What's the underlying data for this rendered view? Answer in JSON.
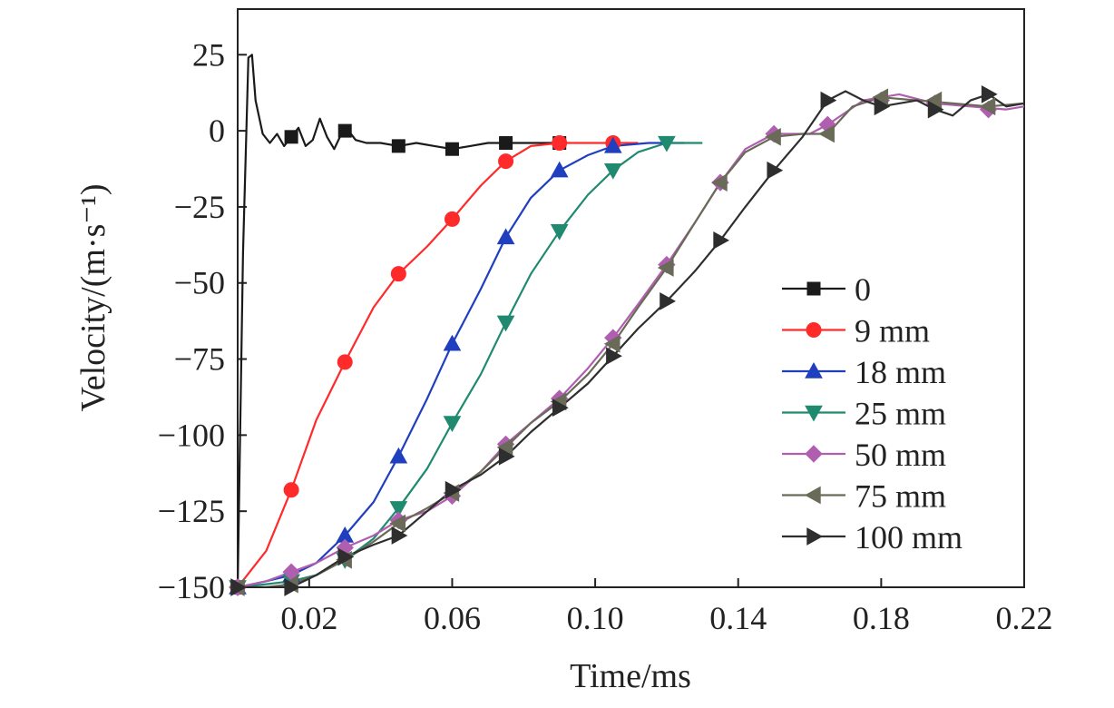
{
  "chart_data": {
    "type": "line",
    "xlabel": "Time/ms",
    "ylabel": "Velocity/(m·s⁻¹)",
    "xlim": [
      0.0,
      0.22
    ],
    "ylim": [
      -150,
      40
    ],
    "x_ticks": [
      0.02,
      0.06,
      0.1,
      0.14,
      0.18,
      0.22
    ],
    "x_tick_labels": [
      "0.02",
      "0.06",
      "0.10",
      "0.14",
      "0.18",
      "0.22"
    ],
    "y_ticks": [
      25,
      0,
      -25,
      -50,
      -75,
      -100,
      -125,
      -150
    ],
    "y_tick_labels": [
      "25",
      "0",
      "−25",
      "−50",
      "−75",
      "−100",
      "−125",
      "−150"
    ],
    "grid": false,
    "legend_position": "right",
    "series": [
      {
        "name": "0",
        "color": "#1a1a1a",
        "marker": "square",
        "x": [
          0.0,
          0.0015,
          0.003,
          0.004,
          0.005,
          0.007,
          0.009,
          0.011,
          0.013,
          0.015,
          0.017,
          0.019,
          0.021,
          0.023,
          0.025,
          0.027,
          0.029,
          0.031,
          0.033,
          0.036,
          0.04,
          0.045,
          0.05,
          0.055,
          0.06,
          0.065,
          0.07,
          0.075,
          0.08,
          0.085,
          0.09
        ],
        "y": [
          -150,
          -40,
          24,
          25,
          10,
          -1,
          -4,
          -1,
          -5,
          -2,
          1,
          -5,
          -3,
          4,
          -2,
          -6,
          -1,
          0,
          -3,
          -4,
          -4,
          -5,
          -4,
          -5,
          -6,
          -5,
          -4,
          -4,
          -4,
          -4,
          -4
        ],
        "marker_x": [
          0.015,
          0.03,
          0.045,
          0.06,
          0.075,
          0.09
        ],
        "marker_y": [
          -2,
          0,
          -5,
          -6,
          -4,
          -4
        ]
      },
      {
        "name": "9 mm",
        "color": "#ff2a2a",
        "marker": "circle",
        "x": [
          0.0,
          0.008,
          0.015,
          0.022,
          0.03,
          0.038,
          0.045,
          0.053,
          0.06,
          0.068,
          0.075,
          0.082,
          0.09,
          0.098,
          0.105,
          0.112
        ],
        "y": [
          -150,
          -138,
          -118,
          -95,
          -76,
          -58,
          -47,
          -38,
          -29,
          -18,
          -10,
          -5,
          -4,
          -4,
          -4,
          -4
        ],
        "marker_x": [
          0.0,
          0.015,
          0.03,
          0.045,
          0.06,
          0.075,
          0.09,
          0.105
        ],
        "marker_y": [
          -150,
          -118,
          -76,
          -47,
          -29,
          -10,
          -4,
          -4
        ]
      },
      {
        "name": "18 mm",
        "color": "#1f3fbf",
        "marker": "triangle-up",
        "x": [
          0.0,
          0.008,
          0.015,
          0.022,
          0.03,
          0.038,
          0.045,
          0.053,
          0.06,
          0.068,
          0.075,
          0.082,
          0.09,
          0.098,
          0.105,
          0.115,
          0.125
        ],
        "y": [
          -150,
          -148,
          -146,
          -142,
          -133,
          -122,
          -107,
          -88,
          -70,
          -52,
          -35,
          -22,
          -13,
          -8,
          -5,
          -4,
          -4
        ],
        "marker_x": [
          0.0,
          0.015,
          0.03,
          0.045,
          0.06,
          0.075,
          0.09,
          0.105
        ],
        "marker_y": [
          -150,
          -146,
          -133,
          -107,
          -70,
          -35,
          -13,
          -5
        ]
      },
      {
        "name": "25 mm",
        "color": "#1f8a70",
        "marker": "triangle-down",
        "x": [
          0.0,
          0.008,
          0.015,
          0.022,
          0.03,
          0.038,
          0.045,
          0.053,
          0.06,
          0.068,
          0.075,
          0.082,
          0.09,
          0.098,
          0.105,
          0.112,
          0.12,
          0.13
        ],
        "y": [
          -150,
          -149,
          -148,
          -146,
          -141,
          -134,
          -124,
          -111,
          -96,
          -80,
          -63,
          -47,
          -33,
          -21,
          -13,
          -7,
          -4,
          -4
        ],
        "marker_x": [
          0.0,
          0.015,
          0.03,
          0.045,
          0.06,
          0.075,
          0.09,
          0.105,
          0.12
        ],
        "marker_y": [
          -150,
          -148,
          -141,
          -124,
          -96,
          -63,
          -33,
          -13,
          -4
        ]
      },
      {
        "name": "50 mm",
        "color": "#b05fb0",
        "marker": "diamond",
        "x": [
          0.0,
          0.008,
          0.015,
          0.022,
          0.03,
          0.038,
          0.045,
          0.053,
          0.06,
          0.068,
          0.075,
          0.082,
          0.09,
          0.098,
          0.105,
          0.112,
          0.12,
          0.128,
          0.135,
          0.142,
          0.15,
          0.16,
          0.165,
          0.175,
          0.185,
          0.195,
          0.205,
          0.215,
          0.22
        ],
        "y": [
          -150,
          -148,
          -145,
          -142,
          -137,
          -133,
          -128,
          -125,
          -120,
          -112,
          -103,
          -96,
          -88,
          -78,
          -68,
          -57,
          -44,
          -30,
          -17,
          -6,
          -1,
          -1,
          2,
          10,
          12,
          9,
          8,
          7,
          8
        ],
        "marker_x": [
          0.0,
          0.015,
          0.03,
          0.045,
          0.06,
          0.075,
          0.09,
          0.105,
          0.12,
          0.135,
          0.15,
          0.165,
          0.18,
          0.195,
          0.21
        ],
        "marker_y": [
          -150,
          -145,
          -137,
          -128,
          -120,
          -103,
          -88,
          -68,
          -44,
          -17,
          -1,
          2,
          10,
          9,
          7
        ]
      },
      {
        "name": "75 mm",
        "color": "#6a6a58",
        "marker": "triangle-left",
        "x": [
          0.0,
          0.008,
          0.015,
          0.022,
          0.03,
          0.038,
          0.045,
          0.053,
          0.06,
          0.068,
          0.075,
          0.082,
          0.09,
          0.098,
          0.105,
          0.112,
          0.12,
          0.128,
          0.135,
          0.142,
          0.15,
          0.158,
          0.165,
          0.172,
          0.18,
          0.19,
          0.2,
          0.21,
          0.22
        ],
        "y": [
          -150,
          -150,
          -149,
          -146,
          -141,
          -135,
          -129,
          -124,
          -119,
          -112,
          -104,
          -96,
          -89,
          -80,
          -70,
          -58,
          -45,
          -30,
          -17,
          -7,
          -2,
          -1,
          -1,
          8,
          11,
          10,
          9,
          8,
          9
        ],
        "marker_x": [
          0.0,
          0.015,
          0.03,
          0.045,
          0.06,
          0.075,
          0.09,
          0.105,
          0.12,
          0.135,
          0.15,
          0.165,
          0.18,
          0.195,
          0.21
        ],
        "marker_y": [
          -150,
          -149,
          -141,
          -129,
          -119,
          -104,
          -89,
          -70,
          -45,
          -17,
          -2,
          -1,
          11,
          10,
          8
        ]
      },
      {
        "name": "100 mm",
        "color": "#2e2e2e",
        "marker": "triangle-right",
        "x": [
          0.0,
          0.008,
          0.015,
          0.022,
          0.03,
          0.038,
          0.045,
          0.053,
          0.06,
          0.068,
          0.075,
          0.082,
          0.09,
          0.098,
          0.105,
          0.112,
          0.12,
          0.128,
          0.135,
          0.142,
          0.15,
          0.158,
          0.165,
          0.17,
          0.175,
          0.18,
          0.185,
          0.19,
          0.195,
          0.2,
          0.205,
          0.21,
          0.215,
          0.22
        ],
        "y": [
          -150,
          -150,
          -150,
          -146,
          -140,
          -136,
          -133,
          -125,
          -118,
          -113,
          -107,
          -99,
          -91,
          -83,
          -74,
          -65,
          -56,
          -46,
          -36,
          -25,
          -13,
          -2,
          10,
          13,
          10,
          8,
          9,
          10,
          7,
          5,
          10,
          12,
          8,
          9
        ],
        "marker_x": [
          0.0,
          0.015,
          0.03,
          0.045,
          0.06,
          0.075,
          0.09,
          0.105,
          0.12,
          0.135,
          0.15,
          0.165,
          0.18,
          0.195,
          0.21
        ],
        "marker_y": [
          -150,
          -150,
          -140,
          -133,
          -118,
          -107,
          -91,
          -74,
          -56,
          -36,
          -13,
          10,
          8,
          7,
          12
        ]
      }
    ]
  }
}
